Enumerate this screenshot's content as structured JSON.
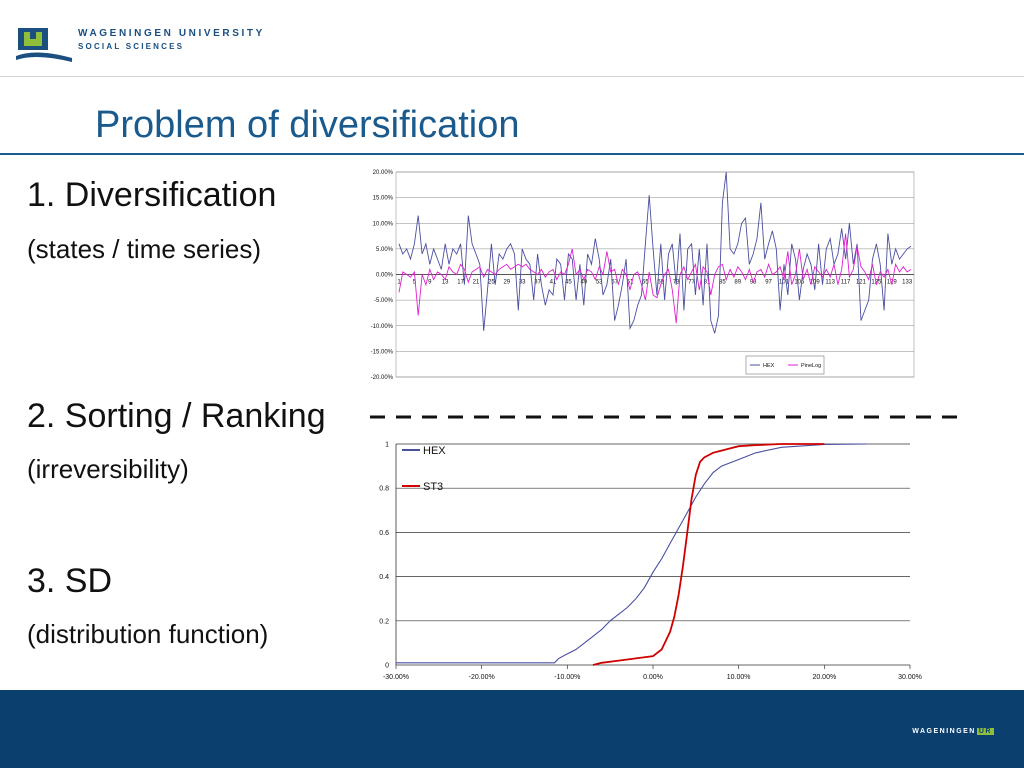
{
  "header": {
    "org_line1": "WAGENINGEN UNIVERSITY",
    "org_line2": "SOCIAL SCIENCES"
  },
  "slide": {
    "title": "Problem of diversification",
    "bullets": [
      {
        "main": "1. Diversification",
        "sub": "(states / time series)"
      },
      {
        "main": "2. Sorting / Ranking",
        "sub": "(irreversibility)"
      },
      {
        "main": "3. SD",
        "sub": "(distribution function)"
      }
    ]
  },
  "footer": {
    "logo_text": "WAGENINGEN",
    "logo_badge": "UR"
  },
  "colors": {
    "brand_blue": "#1a5a8c",
    "footer_blue": "#0a3f6e",
    "hex_series": "#4a4fa0",
    "pineleg_series": "#e020d0",
    "st3_series": "#d00000"
  },
  "chart_data": [
    {
      "type": "line",
      "title": "",
      "xlabel": "",
      "ylabel": "",
      "ylim": [
        -0.2,
        0.2
      ],
      "y_ticks": [
        "20.00%",
        "15.00%",
        "10.00%",
        "5.00%",
        "0.00%",
        "-5.00%",
        "-10.00%",
        "-15.00%",
        "-20.00%"
      ],
      "x_ticks": [
        "1",
        "5",
        "9",
        "13",
        "17",
        "21",
        "25",
        "29",
        "33",
        "37",
        "41",
        "45",
        "49",
        "53",
        "57",
        "61",
        "65",
        "69",
        "73",
        "77",
        "81",
        "85",
        "89",
        "93",
        "97",
        "101",
        "105",
        "109",
        "113",
        "117",
        "121",
        "125",
        "129",
        "133"
      ],
      "legend": [
        "HEX",
        "PineLog"
      ],
      "series": [
        {
          "name": "HEX",
          "values": [
            0.06,
            0.04,
            0.05,
            0.03,
            0.06,
            0.115,
            0.04,
            0.06,
            0.02,
            0.05,
            0.03,
            0.01,
            0.06,
            0.02,
            0.05,
            0.04,
            0.06,
            -0.02,
            0.115,
            0.06,
            0.04,
            0.02,
            -0.11,
            -0.03,
            0.06,
            -0.02,
            0.04,
            0.03,
            0.05,
            0.06,
            0.04,
            -0.07,
            0.05,
            0.03,
            0.02,
            -0.05,
            0.04,
            -0.02,
            -0.06,
            -0.03,
            -0.04,
            0.03,
            0.02,
            -0.05,
            0.04,
            0.03,
            -0.05,
            0.02,
            -0.06,
            0.04,
            0.02,
            0.07,
            0.03,
            -0.04,
            -0.02,
            0.03,
            -0.09,
            -0.06,
            -0.02,
            0.03,
            -0.105,
            -0.09,
            -0.06,
            -0.04,
            0.06,
            0.155,
            0.05,
            -0.04,
            0.06,
            -0.05,
            0.04,
            0.06,
            -0.02,
            0.08,
            -0.07,
            0.05,
            0.06,
            -0.04,
            0.05,
            -0.06,
            0.06,
            -0.09,
            -0.115,
            -0.08,
            0.14,
            0.2,
            0.05,
            0.04,
            0.06,
            0.1,
            0.11,
            0.02,
            0.04,
            0.07,
            0.14,
            0.03,
            0.06,
            0.085,
            0.05,
            -0.07,
            0.02,
            -0.04,
            0.06,
            0.03,
            -0.05,
            0.01,
            0.04,
            0.02,
            -0.03,
            0.06,
            -0.02,
            0.05,
            0.07,
            0.02,
            0.04,
            0.09,
            0.03,
            0.1,
            0.02,
            0.06,
            -0.09,
            -0.07,
            -0.05,
            0.03,
            0.06,
            0.02,
            -0.07,
            0.08,
            0.02,
            0.05,
            0.03,
            0.04,
            0.05,
            0.055
          ]
        },
        {
          "name": "PineLog",
          "values": [
            -0.035,
            0.005,
            0.0,
            -0.005,
            0.005,
            -0.08,
            0.0,
            -0.02,
            0.01,
            -0.01,
            0.005,
            0.0,
            -0.01,
            0.015,
            0.005,
            0.0,
            0.02,
            0.01,
            -0.015,
            0.005,
            0.01,
            0.015,
            -0.005,
            0.01,
            0.005,
            0.0,
            0.01,
            0.015,
            0.02,
            0.01,
            0.015,
            0.02,
            0.015,
            0.02,
            0.01,
            0.005,
            0.0,
            0.01,
            -0.005,
            0.005,
            0.01,
            -0.01,
            0.005,
            0.0,
            0.02,
            0.05,
            0.0,
            0.01,
            -0.01,
            0.01,
            0.005,
            -0.01,
            0.015,
            0.0,
            0.045,
            0.005,
            0.01,
            -0.02,
            0.01,
            0.0,
            -0.03,
            0.0,
            0.005,
            -0.02,
            -0.05,
            0.005,
            -0.04,
            -0.045,
            -0.02,
            0.0,
            0.01,
            -0.03,
            -0.095,
            0.0,
            0.015,
            -0.01,
            0.005,
            0.02,
            -0.03,
            0.015,
            0.005,
            -0.04,
            0.0,
            0.015,
            0.02,
            -0.01,
            0.01,
            -0.005,
            0.015,
            0.005,
            -0.01,
            0.01,
            -0.015,
            0.005,
            0.01,
            -0.005,
            0.02,
            0.0,
            0.005,
            0.015,
            -0.01,
            0.045,
            -0.02,
            0.0,
            0.05,
            -0.01,
            0.01,
            -0.02,
            0.015,
            0.005,
            -0.005,
            0.01,
            -0.005,
            0.02,
            -0.02,
            0.01,
            0.08,
            -0.005,
            0.01,
            0.055,
            0.015,
            0.005,
            -0.01,
            0.02,
            -0.02,
            0.005,
            -0.005,
            0.01,
            -0.02,
            0.02,
            0.005,
            0.015,
            0.005,
            0.01
          ]
        }
      ]
    },
    {
      "type": "line",
      "title": "",
      "xlabel": "",
      "ylabel": "",
      "xlim": [
        -0.3,
        0.3
      ],
      "ylim": [
        0,
        1
      ],
      "x_ticks": [
        "-30.00%",
        "-20.00%",
        "-10.00%",
        "0.00%",
        "10.00%",
        "20.00%",
        "30.00%"
      ],
      "y_ticks": [
        "0",
        "0.2",
        "0.4",
        "0.6",
        "0.8",
        "1"
      ],
      "legend": [
        "HEX",
        "ST3"
      ],
      "series": [
        {
          "name": "HEX",
          "x": [
            -0.3,
            -0.115,
            -0.11,
            -0.1,
            -0.09,
            -0.08,
            -0.07,
            -0.06,
            -0.05,
            -0.04,
            -0.03,
            -0.02,
            -0.01,
            0.0,
            0.01,
            0.02,
            0.03,
            0.04,
            0.05,
            0.06,
            0.07,
            0.08,
            0.1,
            0.12,
            0.15,
            0.2,
            0.25
          ],
          "y": [
            0.01,
            0.01,
            0.03,
            0.05,
            0.07,
            0.1,
            0.13,
            0.16,
            0.2,
            0.23,
            0.26,
            0.3,
            0.35,
            0.42,
            0.48,
            0.55,
            0.62,
            0.69,
            0.76,
            0.82,
            0.87,
            0.9,
            0.93,
            0.96,
            0.985,
            0.998,
            1.0
          ]
        },
        {
          "name": "ST3",
          "x": [
            -0.07,
            -0.06,
            -0.04,
            -0.02,
            0.0,
            0.01,
            0.02,
            0.025,
            0.03,
            0.035,
            0.04,
            0.045,
            0.05,
            0.055,
            0.06,
            0.07,
            0.08,
            0.09,
            0.1,
            0.12,
            0.15,
            0.2
          ],
          "y": [
            0.0,
            0.01,
            0.02,
            0.03,
            0.04,
            0.07,
            0.15,
            0.22,
            0.32,
            0.45,
            0.6,
            0.75,
            0.86,
            0.92,
            0.94,
            0.96,
            0.97,
            0.98,
            0.99,
            0.995,
            1.0,
            1.0
          ]
        }
      ]
    }
  ]
}
